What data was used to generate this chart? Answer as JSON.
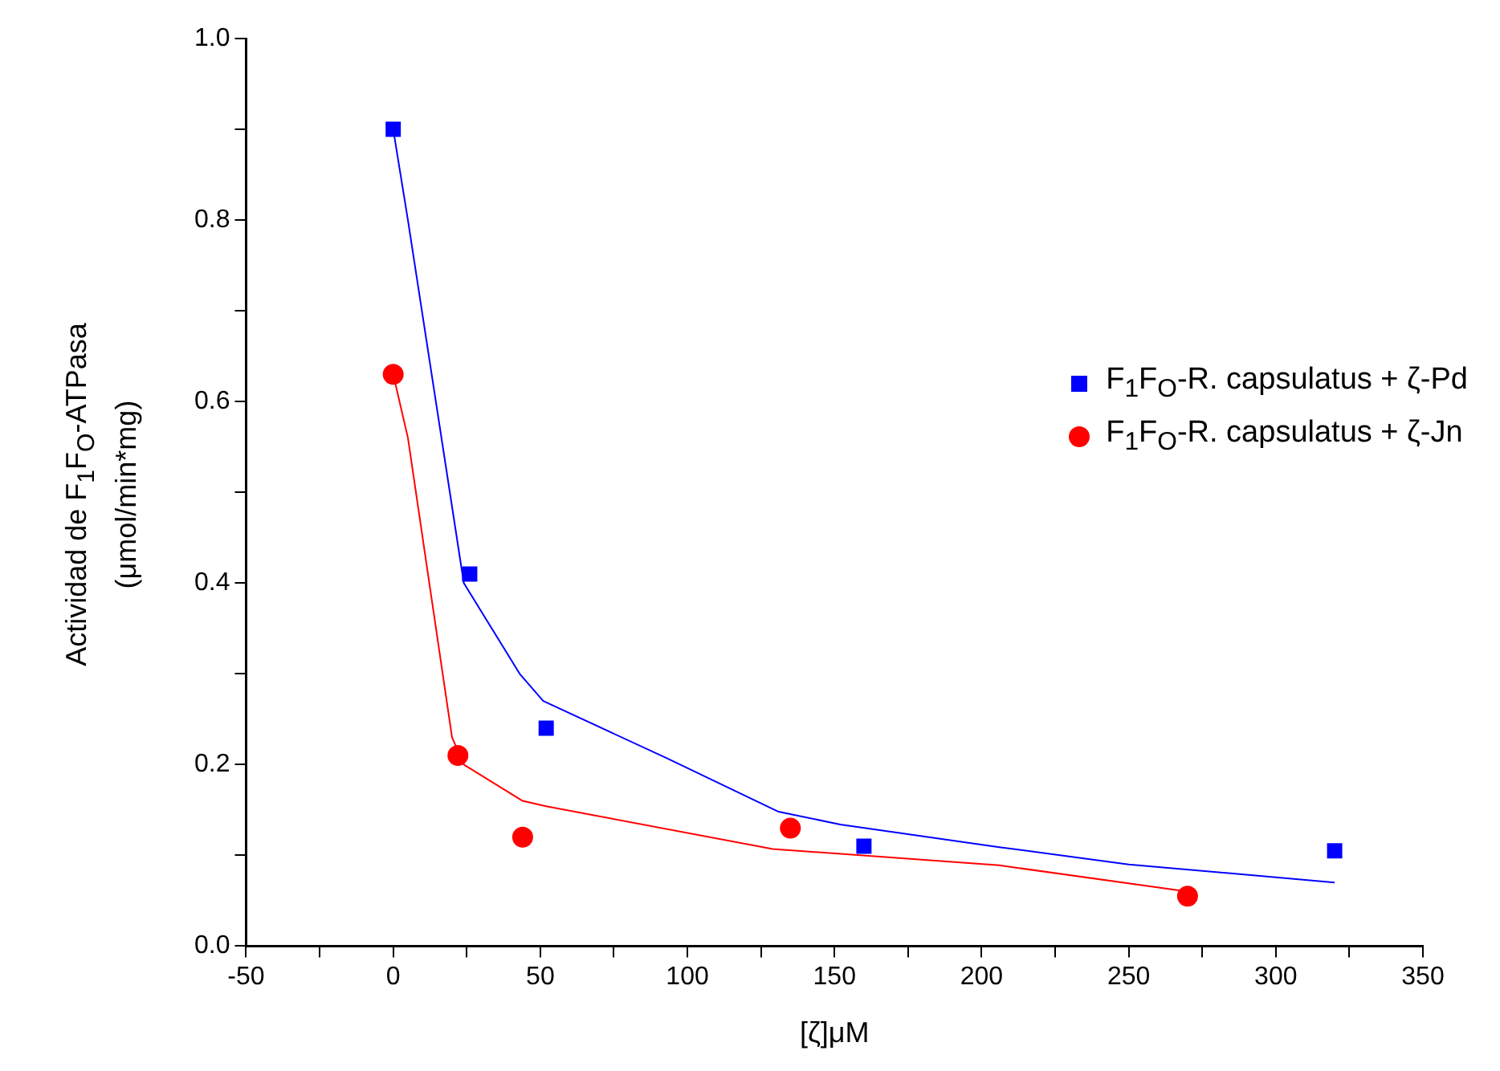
{
  "chart_data": {
    "type": "scatter",
    "xlabel": "[ζ]μM",
    "ylabel": "Actividad de F$_{1}$F$_{O}$-ATPasa (μmol/min*mg)",
    "xlim": [
      -50,
      350
    ],
    "xticks": [
      -50,
      {
        "value": -25,
        "label": null
      },
      0,
      {
        "value": 25,
        "label": null
      },
      50,
      {
        "value": 75,
        "label": null
      },
      100,
      {
        "value": 125,
        "label": null
      },
      150,
      {
        "value": 175,
        "label": null
      },
      200,
      {
        "value": 225,
        "label": null
      },
      250,
      {
        "value": 275,
        "label": null
      },
      300,
      {
        "value": 325,
        "label": null
      },
      350
    ],
    "ylim": [
      0,
      1
    ],
    "yticks": [
      {
        "value": 0,
        "label": "0.0"
      },
      {
        "value": 0.1,
        "label": null
      },
      0.2,
      {
        "value": 0.3,
        "label": null
      },
      0.4,
      {
        "value": 0.5,
        "label": null
      },
      0.6,
      {
        "value": 0.7,
        "label": null
      },
      0.8,
      {
        "value": 0.9,
        "label": null
      },
      {
        "value": 1,
        "label": "1.0"
      }
    ],
    "grid": false,
    "legend": "right",
    "series": [
      {
        "name": "F$_{1}$F$_{O}$-R. capsulatus + ζ-Pd",
        "color": "#0000ff",
        "marker": "square",
        "x": [
          0,
          26,
          52,
          160,
          320
        ],
        "values": [
          0.9,
          0.41,
          0.24,
          0.11,
          0.105
        ]
      },
      {
        "name": "F$_{1}$F$_{O}$-R. capsulatus + ζ-Jn",
        "color": "#ff0000",
        "marker": "circle",
        "x": [
          0,
          22,
          44,
          135,
          270
        ],
        "values": [
          0.63,
          0.21,
          0.12,
          0.13,
          0.055
        ]
      },
      {
        "type": "line",
        "color": "#0000ff",
        "marker": "none",
        "x": [
          0,
          5,
          24,
          43,
          51,
          93,
          131,
          152,
          206,
          250,
          320
        ],
        "values": [
          0.9,
          0.8,
          0.4,
          0.3,
          0.27,
          0.207,
          0.148,
          0.134,
          0.109,
          0.09,
          0.07
        ]
      },
      {
        "type": "line",
        "color": "#ff0000",
        "marker": "none",
        "x": [
          0,
          5,
          20,
          24,
          44,
          52,
          129,
          206,
          270
        ],
        "values": [
          0.63,
          0.56,
          0.23,
          0.2,
          0.16,
          0.154,
          0.107,
          0.089,
          0.06
        ]
      }
    ]
  }
}
